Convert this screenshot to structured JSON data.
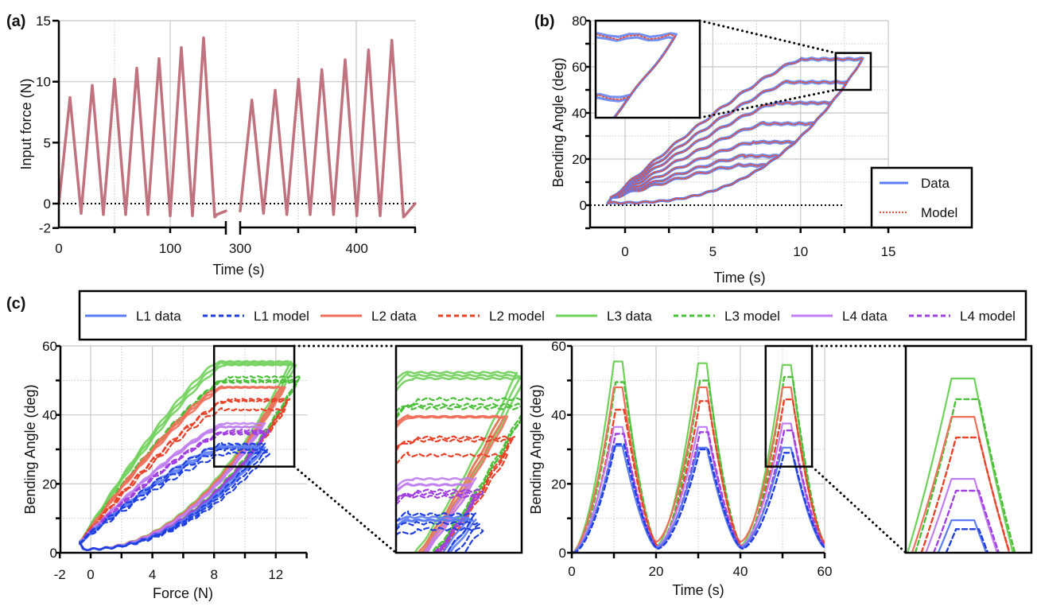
{
  "chart_data": [
    {
      "panel": "(a)",
      "type": "line",
      "xlabel": "Time (s)",
      "ylabel": "Input force (N)",
      "x_axis_break": [
        150,
        300
      ],
      "xlim_segments": [
        [
          0,
          150
        ],
        [
          300,
          450
        ]
      ],
      "ylim": [
        -2,
        15
      ],
      "xticks": [
        0,
        100,
        300,
        400
      ],
      "yticks": [
        -2,
        0,
        5,
        10,
        15
      ],
      "grid": true,
      "zero_reference_line": true,
      "series": [
        {
          "color": "#c0737e",
          "x": [
            0,
            10,
            20,
            30,
            40,
            50,
            60,
            70,
            80,
            90,
            100,
            110,
            120,
            130,
            140,
            142,
            150
          ],
          "y": [
            0,
            8.7,
            -0.8,
            9.7,
            -0.9,
            10.2,
            -0.9,
            11.1,
            -0.9,
            11.9,
            -1.0,
            12.8,
            -1.0,
            13.6,
            -1.1,
            -0.9,
            -0.6
          ]
        },
        {
          "color": "#c0737e",
          "x": [
            300,
            310,
            320,
            330,
            340,
            350,
            360,
            370,
            380,
            390,
            400,
            410,
            420,
            430,
            440,
            442,
            450
          ],
          "y": [
            -0.6,
            8.5,
            -0.8,
            9.3,
            -0.9,
            10.2,
            -0.9,
            11.0,
            -0.9,
            11.8,
            -1.0,
            12.6,
            -1.0,
            13.4,
            -1.1,
            -0.9,
            0
          ]
        }
      ]
    },
    {
      "panel": "(b)",
      "type": "line",
      "xlabel": "Time (s)",
      "ylabel": "Bending Angle (deg)",
      "xlim": [
        -2,
        15
      ],
      "ylim": [
        -10,
        80
      ],
      "xticks": [
        0,
        5,
        10,
        15
      ],
      "yticks": [
        0,
        20,
        40,
        60,
        80
      ],
      "grid": true,
      "legend": "bottom-right",
      "inset_zoom": {
        "xlim": [
          12,
          14
        ],
        "ylim": [
          50,
          66
        ]
      },
      "loop_peak_angles": [
        17,
        21,
        27,
        35,
        44,
        53,
        63
      ],
      "series": [
        {
          "name": "Data",
          "color": "#5b7cf5",
          "style": "solid"
        },
        {
          "name": "Model",
          "color": "#e8503a",
          "style": "dotted"
        }
      ]
    },
    {
      "panel": "(c) left",
      "type": "line",
      "xlabel": "Force (N)",
      "ylabel": "Bending Angle (deg)",
      "xlim": [
        -2,
        14
      ],
      "ylim": [
        0,
        60
      ],
      "xticks": [
        -2,
        0,
        4,
        8,
        12
      ],
      "yticks": [
        0,
        20,
        40,
        60
      ],
      "grid": true,
      "inset_zoom": {
        "xlim": [
          8,
          13.2
        ],
        "ylim": [
          25,
          60
        ]
      },
      "series": [
        {
          "name": "L1 data",
          "color": "#5b7cf5",
          "style": "solid",
          "peak_angles": [
            31,
            30.5,
            30.5
          ],
          "max_force": 11
        },
        {
          "name": "L1 model",
          "color": "#1f3fe0",
          "style": "dashed",
          "peak_angles": [
            31.5,
            30,
            29
          ],
          "max_force": 11
        },
        {
          "name": "L2 data",
          "color": "#ef6f5a",
          "style": "solid",
          "peak_angles": [
            48,
            48,
            48
          ],
          "max_force": 12.3
        },
        {
          "name": "L2 model",
          "color": "#e8432a",
          "style": "dashed",
          "peak_angles": [
            41.5,
            44,
            44.5
          ],
          "max_force": 12.3
        },
        {
          "name": "L3 data",
          "color": "#6fd05a",
          "style": "solid",
          "peak_angles": [
            55.5,
            55,
            54.5
          ],
          "max_force": 13
        },
        {
          "name": "L3 model",
          "color": "#4cbf3a",
          "style": "dashed",
          "peak_angles": [
            49.5,
            50,
            51
          ],
          "max_force": 13
        },
        {
          "name": "L4 data",
          "color": "#c07ef0",
          "style": "solid",
          "peak_angles": [
            36.5,
            36.5,
            37.5
          ],
          "max_force": 11
        },
        {
          "name": "L4 model",
          "color": "#a040e0",
          "style": "dashed",
          "peak_angles": [
            34.5,
            35,
            35.5
          ],
          "max_force": 11
        }
      ]
    },
    {
      "panel": "(c) right",
      "type": "line",
      "xlabel": "Time (s)",
      "ylabel": "Bending Angle (deg)",
      "xlim": [
        0,
        60
      ],
      "ylim": [
        0,
        60
      ],
      "xticks": [
        0,
        20,
        40,
        60
      ],
      "yticks": [
        0,
        20,
        40,
        60
      ],
      "grid": true,
      "inset_zoom": {
        "xlim": [
          46,
          57
        ],
        "ylim": [
          25,
          60
        ]
      },
      "cycle_peak_times": [
        11,
        31,
        51
      ],
      "cycle_min_angles": {
        "L1 data": 1.5,
        "L1 model": 1.2,
        "L2 data": 3.2,
        "L2 model": 2,
        "L3 data": 2,
        "L3 model": 1.8,
        "L4 data": 1.8,
        "L4 model": 1.5
      }
    }
  ],
  "labels": {
    "panel_a": "(a)",
    "panel_b": "(b)",
    "panel_c": "(c)",
    "a_xlabel": "Time (s)",
    "a_ylabel": "Input force (N)",
    "b_xlabel": "Time (s)",
    "b_ylabel": "Bending Angle (deg)",
    "c_left_xlabel": "Force (N)",
    "c_left_ylabel": "Bending Angle (deg)",
    "c_right_xlabel": "Time (s)",
    "c_right_ylabel": "Bending Angle (deg)"
  },
  "legend_b": [
    "Data",
    "Model"
  ],
  "legend_c": [
    "L1 data",
    "L1 model",
    "L2 data",
    "L2 model",
    "L3 data",
    "L3 model",
    "L4 data",
    "L4 model"
  ]
}
